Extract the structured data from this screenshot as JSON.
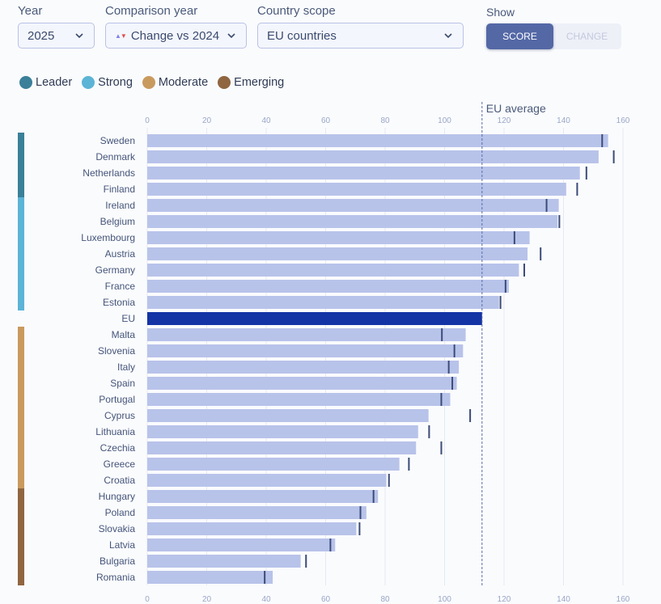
{
  "controls": {
    "year": {
      "label": "Year",
      "value": "2025"
    },
    "comparison": {
      "label": "Comparison year",
      "value": "Change vs 2024"
    },
    "scope": {
      "label": "Country scope",
      "value": "EU countries"
    },
    "show": {
      "label": "Show",
      "options": [
        "SCORE",
        "CHANGE"
      ],
      "active": "SCORE"
    }
  },
  "colors": {
    "bar": "#b8c3ea",
    "bar_highlight": "#1433a5",
    "marker": "#3b4b78",
    "Leader": "#3a8099",
    "Strong": "#5cb4d6",
    "Moderate": "#c99a5e",
    "Emerging": "#8f6640"
  },
  "legend": [
    {
      "name": "Leader",
      "color": "#3a8099"
    },
    {
      "name": "Strong",
      "color": "#5cb4d6"
    },
    {
      "name": "Moderate",
      "color": "#c99a5e"
    },
    {
      "name": "Emerging",
      "color": "#8f6640"
    }
  ],
  "chart_data": {
    "type": "bar",
    "orientation": "horizontal",
    "xlim": [
      0,
      160
    ],
    "ticks": [
      0,
      20,
      40,
      60,
      80,
      100,
      120,
      140,
      160
    ],
    "grid": true,
    "reference_line": {
      "label": "EU average",
      "value": 112.6
    },
    "highlight": "EU",
    "categories": [
      "Sweden",
      "Denmark",
      "Netherlands",
      "Finland",
      "Ireland",
      "Belgium",
      "Luxembourg",
      "Austria",
      "Germany",
      "France",
      "Estonia",
      "EU",
      "Malta",
      "Slovenia",
      "Italy",
      "Spain",
      "Portugal",
      "Cyprus",
      "Lithuania",
      "Czechia",
      "Greece",
      "Croatia",
      "Hungary",
      "Poland",
      "Slovakia",
      "Latvia",
      "Bulgaria",
      "Romania"
    ],
    "series": [
      {
        "values": [
          155.0,
          151.8,
          145.5,
          140.9,
          138.4,
          138.0,
          128.6,
          127.9,
          125.0,
          121.6,
          118.3,
          112.6,
          107.1,
          106.2,
          104.8,
          104.1,
          101.9,
          94.6,
          91.1,
          90.4,
          84.8,
          80.4,
          77.6,
          73.7,
          70.3,
          63.2,
          51.6,
          42.2
        ]
      },
      {
        "values": [
          153.0,
          156.9,
          147.7,
          144.6,
          134.3,
          138.6,
          123.5,
          132.3,
          126.8,
          120.5,
          118.8,
          112.6,
          99.1,
          103.3,
          101.4,
          102.6,
          98.9,
          108.6,
          94.8,
          98.9,
          88.0,
          81.3,
          76.1,
          71.7,
          71.4,
          61.6,
          53.4,
          39.5
        ]
      }
    ],
    "groups": [
      {
        "name": "Leader",
        "from": 0,
        "to": 3
      },
      {
        "name": "Strong",
        "from": 4,
        "to": 10
      },
      {
        "name": "Moderate",
        "from": 12,
        "to": 21
      },
      {
        "name": "Emerging",
        "from": 22,
        "to": 27
      }
    ]
  }
}
